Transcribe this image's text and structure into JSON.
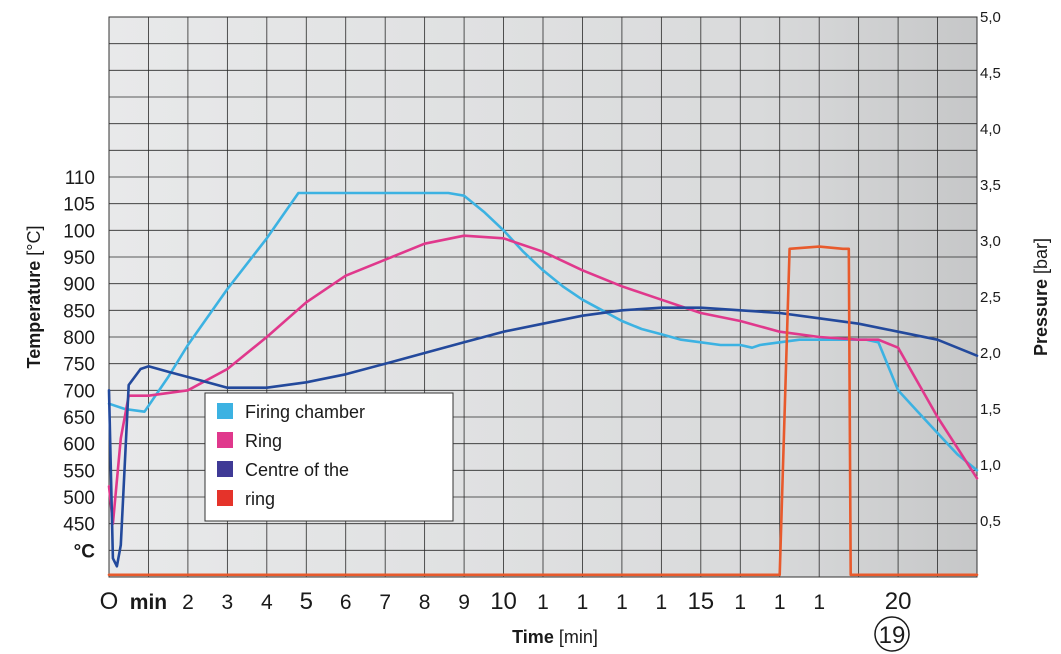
{
  "chart_data": {
    "type": "line",
    "ylabel_bold": "Temperature",
    "ylabel_unit": " [°C]",
    "y2label_bold": "Pressure",
    "y2label_unit": " [bar]",
    "xlabel_bold": "Time",
    "xlabel_unit": " [min]",
    "ylim": [
      0,
      21
    ],
    "y2lim": [
      0,
      5.0
    ],
    "xlim": [
      0,
      22
    ],
    "y_ticks": [
      "°C",
      "450",
      "500",
      "550",
      "600",
      "650",
      "700",
      "750",
      "800",
      "850",
      "900",
      "950",
      "100",
      "105",
      "110"
    ],
    "y2_ticks": [
      "0,5",
      "1,0",
      "1,5",
      "2,0",
      "2,5",
      "3,0",
      "3,5",
      "4,0",
      "4,5",
      "5,0"
    ],
    "x_ticks": [
      "O",
      "min",
      "2",
      "3",
      "4",
      "5",
      "6",
      "7",
      "8",
      "9",
      "10",
      "1",
      "1",
      "1",
      "1",
      "15",
      "1",
      "1",
      "1",
      "",
      "20",
      ""
    ],
    "badge": "19",
    "legend": [
      "Firing chamber",
      "Ring",
      "Centre of the",
      "ring"
    ],
    "colors": {
      "firing_chamber": "#3cb2e2",
      "ring": "#e0388c",
      "centre": "#23499c",
      "pressure": "#e85a2c",
      "legend_centre": "#3f3a96",
      "legend_ring_label": "#e5332a"
    },
    "series": [
      {
        "name": "Firing chamber",
        "axis": "left",
        "x": [
          0,
          0.4,
          0.9,
          1.5,
          2.0,
          3.0,
          4.0,
          4.8,
          5.5,
          6.0,
          7.0,
          8.0,
          8.6,
          9.0,
          9.5,
          10.0,
          10.5,
          11.0,
          11.5,
          12.0,
          12.5,
          13.0,
          13.5,
          14.0,
          14.5,
          15.0,
          15.5,
          16.0,
          16.3,
          16.5,
          17.0,
          17.5,
          18.0,
          18.5,
          19.0,
          19.2,
          19.5,
          20.0,
          20.5,
          21.0,
          21.5,
          22.0
        ],
        "y": [
          6.5,
          6.3,
          6.2,
          7.5,
          8.7,
          10.8,
          12.7,
          14.4,
          14.4,
          14.4,
          14.4,
          14.4,
          14.4,
          14.3,
          13.7,
          13.0,
          12.2,
          11.5,
          10.9,
          10.4,
          10.0,
          9.6,
          9.3,
          9.1,
          8.9,
          8.8,
          8.7,
          8.7,
          8.6,
          8.7,
          8.8,
          8.9,
          8.9,
          8.9,
          8.9,
          8.9,
          8.8,
          7.0,
          6.2,
          5.4,
          4.6,
          4.0
        ]
      },
      {
        "name": "Ring",
        "axis": "left",
        "x": [
          0,
          0.1,
          0.3,
          0.5,
          1.0,
          2.0,
          3.0,
          4.0,
          5.0,
          6.0,
          7.0,
          8.0,
          9.0,
          10.0,
          11.0,
          12.0,
          13.0,
          14.0,
          15.0,
          16.0,
          17.0,
          18.0,
          19.0,
          19.5,
          20.0,
          21.0,
          22.0
        ],
        "y": [
          3.4,
          2.0,
          5.2,
          6.8,
          6.8,
          7.0,
          7.8,
          9.0,
          10.3,
          11.3,
          11.9,
          12.5,
          12.8,
          12.7,
          12.2,
          11.5,
          10.9,
          10.4,
          9.9,
          9.6,
          9.2,
          9.0,
          8.9,
          8.9,
          8.6,
          6.0,
          3.7
        ]
      },
      {
        "name": "Centre of the ring",
        "axis": "left",
        "x": [
          0,
          0.1,
          0.2,
          0.3,
          0.5,
          0.8,
          1.0,
          1.5,
          2.0,
          3.0,
          4.0,
          5.0,
          6.0,
          7.0,
          8.0,
          9.0,
          10.0,
          11.0,
          12.0,
          13.0,
          14.0,
          15.0,
          16.0,
          17.0,
          18.0,
          19.0,
          20.0,
          21.0,
          22.0
        ],
        "y": [
          7.0,
          0.7,
          0.4,
          1.2,
          7.2,
          7.8,
          7.9,
          7.7,
          7.5,
          7.1,
          7.1,
          7.3,
          7.6,
          8.0,
          8.4,
          8.8,
          9.2,
          9.5,
          9.8,
          10.0,
          10.1,
          10.1,
          10.0,
          9.9,
          9.7,
          9.5,
          9.2,
          8.9,
          8.3
        ]
      },
      {
        "name": "Pressure",
        "axis": "right",
        "x": [
          0,
          1,
          2,
          3,
          4,
          5,
          6,
          7,
          8,
          9,
          10,
          11,
          12,
          13,
          14,
          15,
          16,
          17,
          17.0,
          17.25,
          18.0,
          18.6,
          18.75,
          18.8,
          19,
          20,
          21,
          22
        ],
        "y": [
          0.02,
          0.02,
          0.02,
          0.02,
          0.02,
          0.02,
          0.02,
          0.02,
          0.02,
          0.02,
          0.02,
          0.02,
          0.02,
          0.02,
          0.02,
          0.02,
          0.02,
          0.02,
          0.02,
          2.93,
          2.95,
          2.93,
          2.93,
          0.02,
          0.02,
          0.02,
          0.02,
          0.02
        ]
      }
    ]
  }
}
